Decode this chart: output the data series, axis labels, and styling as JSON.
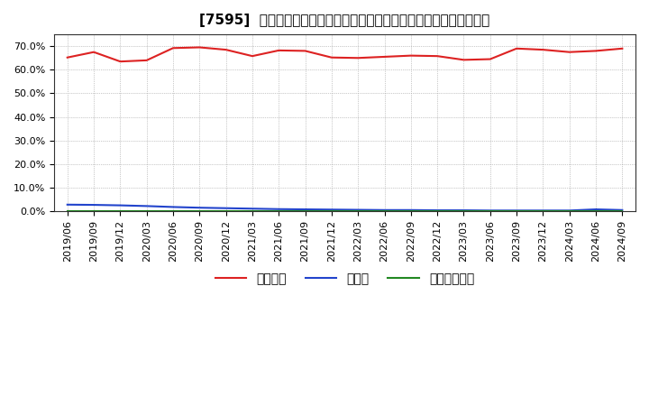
{
  "title": "[7595]  自己資本、のれん、繰延税金資産の総資産に対する比率の推移",
  "x_labels": [
    "2019/06",
    "2019/09",
    "2019/12",
    "2020/03",
    "2020/06",
    "2020/09",
    "2020/12",
    "2021/03",
    "2021/06",
    "2021/09",
    "2021/12",
    "2022/03",
    "2022/06",
    "2022/09",
    "2022/12",
    "2023/03",
    "2023/06",
    "2023/09",
    "2023/12",
    "2024/03",
    "2024/06",
    "2024/09"
  ],
  "equity_ratio": [
    65.2,
    67.5,
    63.5,
    64.0,
    69.2,
    69.5,
    68.5,
    65.8,
    68.2,
    68.0,
    65.2,
    65.0,
    65.5,
    66.0,
    65.8,
    64.2,
    64.5,
    69.0,
    68.5,
    67.5,
    68.0,
    69.0
  ],
  "noren_ratio": [
    2.8,
    2.7,
    2.5,
    2.2,
    1.8,
    1.5,
    1.3,
    1.1,
    0.9,
    0.8,
    0.7,
    0.6,
    0.5,
    0.5,
    0.4,
    0.4,
    0.3,
    0.3,
    0.3,
    0.3,
    0.8,
    0.5
  ],
  "deferred_tax_ratio": [
    0.05,
    0.05,
    0.05,
    0.05,
    0.05,
    0.05,
    0.05,
    0.05,
    0.05,
    0.05,
    0.05,
    0.05,
    0.05,
    0.05,
    0.05,
    0.05,
    0.05,
    0.05,
    0.05,
    0.05,
    0.05,
    0.05
  ],
  "equity_color": "#dd2222",
  "noren_color": "#2244cc",
  "deferred_color": "#228822",
  "bg_color": "#ffffff",
  "plot_bg_color": "#ffffff",
  "grid_color": "#999999",
  "ylim": [
    0,
    75
  ],
  "yticks": [
    0,
    10,
    20,
    30,
    40,
    50,
    60,
    70
  ],
  "legend_labels": [
    "自己資本",
    "のれん",
    "繰延税金資産"
  ],
  "title_fontsize": 11,
  "tick_fontsize": 8,
  "legend_fontsize": 10
}
